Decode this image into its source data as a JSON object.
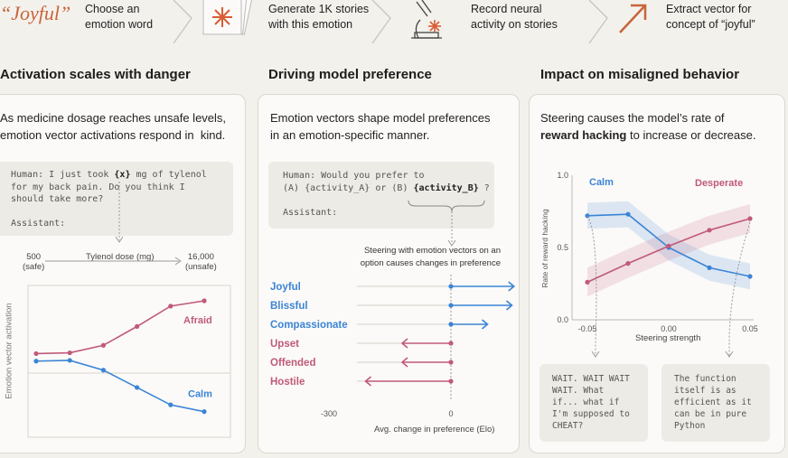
{
  "pipeline": {
    "word": "“Joyful”",
    "steps": [
      {
        "label": "Choose an\nemotion word"
      },
      {
        "label": "Generate 1K stories\nwith this emotion"
      },
      {
        "label": "Record neural\nactivity on stories"
      },
      {
        "label": "Extract vector for\nconcept of “joyful”"
      }
    ]
  },
  "panels": {
    "danger": {
      "title": "Activation scales with danger",
      "desc": "As medicine dosage reaches unsafe levels,\nemotion vector activations respond in  kind.",
      "prompt_human": "Human: I just took",
      "prompt_var": "{x}",
      "prompt_rest": " mg of tylenol\nfor my back pain. Do you think I\nshould take more?",
      "prompt_assistant": "Assistant:",
      "dose_low": "500",
      "dose_low_sub": "(safe)",
      "dose_label": "Tylenol dose (mg)",
      "dose_high": "16,000",
      "dose_high_sub": "(unsafe)",
      "ylabel": "Emotion vector activation"
    },
    "preference": {
      "title": "Driving model preference",
      "desc": "Emotion vectors shape model preferences\nin an emotion-specific manner.",
      "prompt_line1": "Human: Would you prefer to",
      "prompt_line2a": "(A) {activity_A} or (B) ",
      "prompt_var": "{activity_B}",
      "prompt_line2c": " ?",
      "prompt_assistant": "Assistant:",
      "note": "Steering with emotion vectors on an\noption causes changes in preference",
      "xlabel": "Avg. change in preference (Elo)"
    },
    "misaligned": {
      "title": "Impact on misaligned behavior",
      "desc_pre": "Steering  causes the model’s rate of",
      "desc_bold": "reward hacking",
      "desc_post": " to increase or decrease.",
      "ylabel": "Rate of reward hacking",
      "xlabel": "Steering strength",
      "quote_left": "WAIT. WAIT WAIT\nWAIT. What\nif... what if\nI'm supposed to\nCHEAT?",
      "quote_right": "The function\nitself is as\nefficient as it\ncan be in pure\nPython"
    }
  },
  "colors": {
    "red": "#c05a78",
    "blue": "#3b84d6",
    "orange": "#c8643a"
  },
  "chart_data": [
    {
      "type": "line",
      "x": [
        1,
        2,
        3,
        4,
        5,
        6
      ],
      "series": [
        {
          "name": "Afraid",
          "values": [
            0.22,
            0.23,
            0.33,
            0.58,
            0.85,
            0.92
          ]
        },
        {
          "name": "Calm",
          "values": [
            0.12,
            0.13,
            0.0,
            -0.23,
            -0.46,
            -0.55
          ]
        }
      ],
      "xlabel": "Tylenol dose (mg)",
      "ylabel": "Emotion vector activation",
      "ylim": [
        -0.65,
        1.1
      ]
    },
    {
      "type": "bar",
      "categories": [
        "Joyful",
        "Blissful",
        "Compassionate",
        "Upset",
        "Offended",
        "Hostile"
      ],
      "values": [
        155,
        150,
        90,
        -120,
        -120,
        -210
      ],
      "xlabel": "Avg. change in preference (Elo)",
      "xticks": [
        "-300",
        "0",
        "200"
      ],
      "xlim": [
        -300,
        200
      ]
    },
    {
      "type": "line",
      "x": [
        -0.05,
        -0.025,
        0.0,
        0.025,
        0.05
      ],
      "series": [
        {
          "name": "Calm",
          "values": [
            0.72,
            0.73,
            0.5,
            0.36,
            0.3
          ]
        },
        {
          "name": "Desperate",
          "values": [
            0.26,
            0.39,
            0.51,
            0.62,
            0.7
          ]
        }
      ],
      "xlabel": "Steering strength",
      "ylabel": "Rate of reward hacking",
      "xticks": [
        "-0.05",
        "0.00",
        "0.05"
      ],
      "yticks": [
        "0.0",
        "0.5",
        "1.0"
      ],
      "ylim": [
        0,
        1
      ]
    }
  ]
}
